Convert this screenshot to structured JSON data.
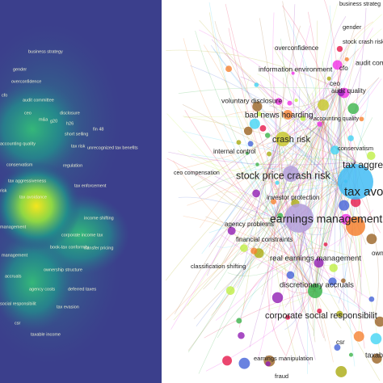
{
  "density_map": {
    "labels": [
      "business strategy",
      "gender",
      "overconfidence",
      "cfo",
      "audit committee",
      "ceo",
      "m&a",
      "g20",
      "disclosure",
      "accounting quality",
      "fin 48",
      "h26",
      "short selling",
      "tax risk",
      "unrecognized tax benefits",
      "conservatism",
      "regulation",
      "tax aggressiveness",
      "tax enforcement",
      "risk",
      "tax avoidance",
      "management",
      "income shifting",
      "corporate income tax",
      "book-tax conformity",
      "transfer pricing",
      "management",
      "ownership structure",
      "accruals",
      "agency costs",
      "deferred taxes",
      "social responsibilit",
      "tax evasion",
      "csr",
      "taxable income"
    ]
  },
  "network": {
    "labels": [
      "business strateg",
      "gender",
      "overconfidence",
      "stock crash risk",
      "information environment",
      "cfo",
      "audit comm",
      "ceo",
      "audit quality",
      "voluntary disclosure",
      "bad news hoarding",
      "accounting quality",
      "crash risk",
      "internal control",
      "conservatism",
      "tax aggressive",
      "ceo compensation",
      "stock price crash risk",
      "tax avoi",
      "investor protection",
      "earnings management",
      "agency problems",
      "financial constraints",
      "real earnings management",
      "own",
      "classification shifting",
      "discretionary accruals",
      "corporate social responsibilit",
      "csr",
      "earnings manipulation",
      "taxabl",
      "fraud"
    ]
  }
}
